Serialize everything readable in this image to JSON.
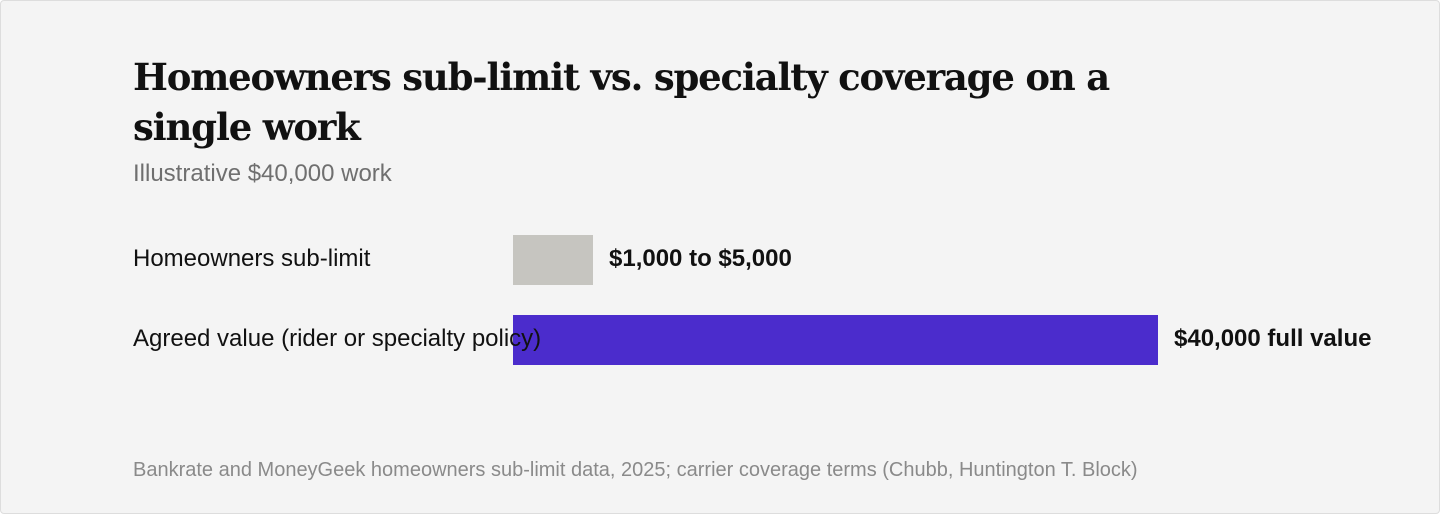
{
  "chart_data": {
    "type": "bar",
    "orientation": "horizontal",
    "title": "Homeowners sub-limit vs. specialty coverage on a single work",
    "subtitle": "Illustrative $40,000 work",
    "xlabel": "",
    "ylabel": "",
    "grid": false,
    "categories": [
      "Homeowners sub-limit",
      "Agreed value (rider or specialty policy)"
    ],
    "values": [
      5000,
      40000
    ],
    "value_ranges": [
      [
        1000,
        5000
      ],
      [
        40000,
        40000
      ]
    ],
    "data_labels": [
      "$1,000 to $5,000",
      "$40,000 full value"
    ],
    "colors": [
      "#c6c5c0",
      "#4b2ccc"
    ],
    "xlim": [
      0,
      40000
    ],
    "source": "Bankrate and MoneyGeek homeowners sub-limit data, 2025; carrier coverage terms (Chubb, Huntington T. Block)"
  }
}
